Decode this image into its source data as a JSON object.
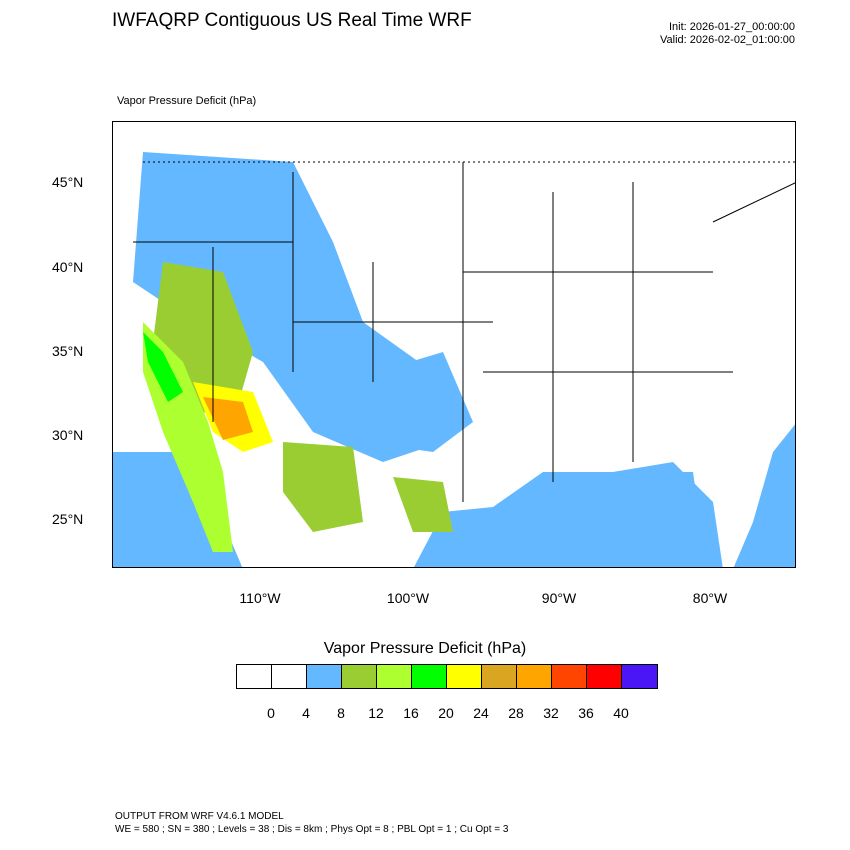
{
  "header": {
    "title": "IWFAQRP Contiguous US Real Time WRF",
    "init": "Init: 2026-01-27_00:00:00",
    "valid": "Valid: 2026-02-02_01:00:00"
  },
  "map": {
    "field_label": "Vapor Pressure Deficit   (hPa)",
    "lat_labels": [
      "45°N",
      "40°N",
      "35°N",
      "30°N",
      "25°N"
    ],
    "lon_labels": [
      "110°W",
      "100°W",
      "90°W",
      "80°W"
    ]
  },
  "legend": {
    "title": "Vapor Pressure Deficit  (hPa)",
    "colors": [
      "#ffffff",
      "#ffffff",
      "#63b8ff",
      "#9acd32",
      "#adff2f",
      "#00ff00",
      "#ffff00",
      "#daa520",
      "#ffa500",
      "#ff4500",
      "#ff0000",
      "#4a16f5"
    ],
    "ticks": [
      "0",
      "4",
      "8",
      "12",
      "16",
      "20",
      "24",
      "28",
      "32",
      "36",
      "40"
    ]
  },
  "footer": {
    "line1": "OUTPUT FROM WRF V4.6.1 MODEL",
    "line2": "WE = 580 ; SN = 380 ; Levels = 38 ; Dis = 8km ; Phys Opt = 8 ; PBL Opt = 1 ; Cu Opt = 3"
  }
}
